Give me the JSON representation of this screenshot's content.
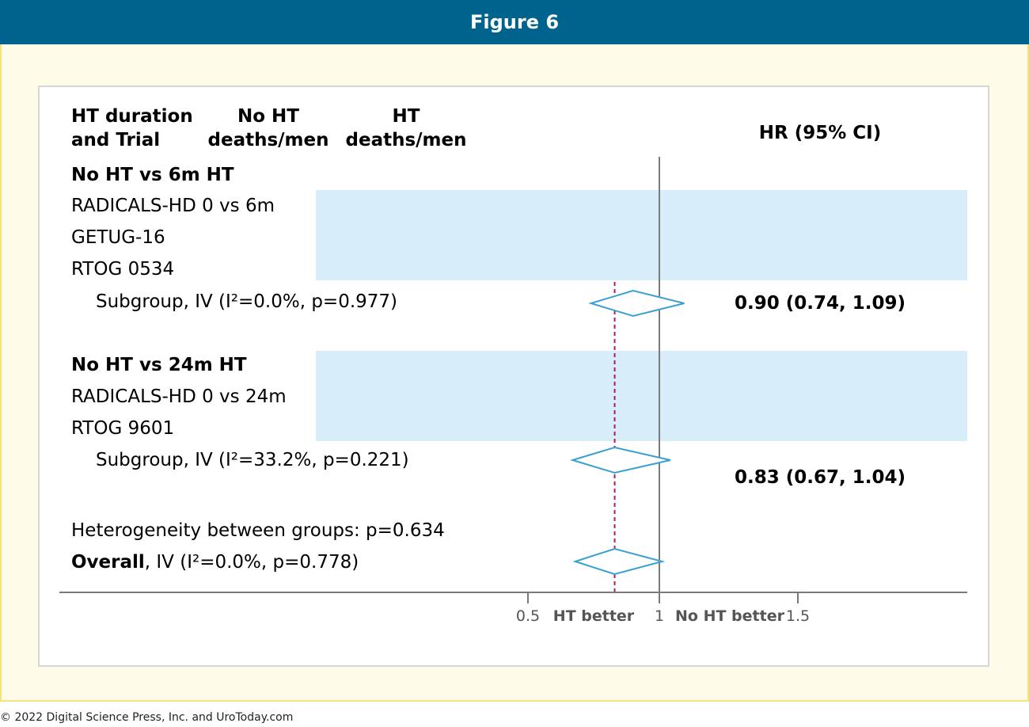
{
  "figure_title": "Figure 6",
  "copyright": "© 2022 Digital Science Press, Inc. and UroToday.com",
  "columns": {
    "trial_line1": "HT duration",
    "trial_line2": "and Trial",
    "noht_line1": "No HT",
    "noht_line2": "deaths/men",
    "ht_line1": "HT",
    "ht_line2": "deaths/men",
    "hr": "HR (95% CI)"
  },
  "footer": {
    "heterogeneity": "Heterogeneity between groups: p=0.634",
    "overall_bold": "Overall",
    "overall_rest": ", IV (I²=0.0%, p=0.778)"
  },
  "axis": {
    "favors_left": "HT better",
    "favors_right": "No HT better"
  },
  "colors": {
    "header": "#00638d",
    "frame_bg": "#fefbe9",
    "frame_border": "#f6e27a",
    "mask": "#d7edfa",
    "diamond": "#3aa0cf",
    "overall_line": "#b0195d"
  },
  "chart_data": {
    "type": "forest",
    "xticks": [
      0.5,
      1,
      1.5
    ],
    "xtick_labels": [
      "0.5",
      "1",
      "1.5"
    ],
    "null_line": 1,
    "overall_effect_line": 0.83,
    "groups": [
      {
        "label": "No HT vs 6m HT",
        "trials": [
          "RADICALS-HD 0 vs 6m",
          "GETUG-16",
          "RTOG 0534"
        ],
        "subgroup_label": "Subgroup, IV (I²=0.0%, p=0.977)",
        "subgroup": {
          "hr": 0.9,
          "lower": 0.74,
          "upper": 1.09,
          "text": "0.90 (0.74, 1.09)"
        }
      },
      {
        "label": "No HT vs 24m HT",
        "trials": [
          "RADICALS-HD 0 vs 24m",
          "RTOG 9601"
        ],
        "subgroup_label": "Subgroup, IV (I²=33.2%, p=0.221)",
        "subgroup": {
          "hr": 0.83,
          "lower": 0.67,
          "upper": 1.04,
          "text": "0.83 (0.67, 1.04)"
        }
      }
    ],
    "overall": {
      "hr": 0.83,
      "lower": 0.68,
      "upper": 1.01
    }
  }
}
